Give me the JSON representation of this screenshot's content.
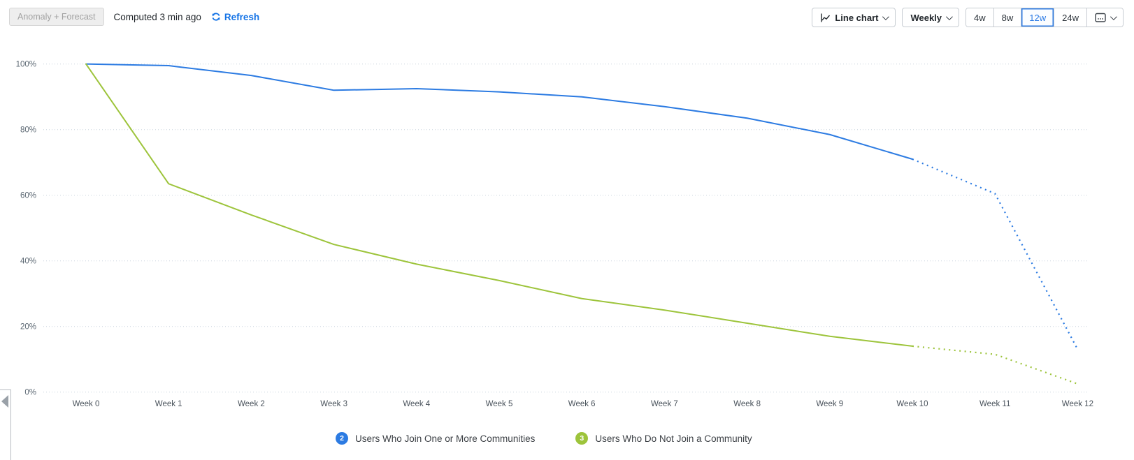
{
  "header": {
    "anomaly_button": "Anomaly + Forecast",
    "computed_text": "Computed 3 min ago",
    "refresh_label": "Refresh",
    "chart_type_label": "Line chart",
    "interval_label": "Weekly",
    "range_options": [
      "4w",
      "8w",
      "12w",
      "24w"
    ],
    "selected_range": "12w"
  },
  "colors": {
    "accent_blue": "#2c7be2",
    "series_green": "#9dc43b",
    "refresh_link": "#1473e6",
    "gridline": "#c9d4de",
    "axis_label": "#5c6873"
  },
  "chart_data": {
    "type": "line",
    "title": "",
    "xlabel": "",
    "ylabel": "",
    "x_labels": [
      "Week 0",
      "Week 1",
      "Week 2",
      "Week 3",
      "Week 4",
      "Week 5",
      "Week 6",
      "Week 7",
      "Week 8",
      "Week 9",
      "Week 10",
      "Week 11",
      "Week 12"
    ],
    "y_ticks": [
      "100%",
      "80%",
      "60%",
      "40%",
      "20%",
      "0%"
    ],
    "y_tick_values": [
      100,
      80,
      60,
      40,
      20,
      0
    ],
    "ylim": [
      0,
      100
    ],
    "grid": "dotted-horizontal",
    "legend_position": "bottom",
    "forecast_style": "dotted",
    "series": [
      {
        "name": "Users Who Join One or More Communities",
        "badge": "2",
        "color": "#2c7be2",
        "values": [
          100,
          99.5,
          96.5,
          92,
          92.5,
          91.5,
          90,
          87,
          83.5,
          78.5,
          71
        ],
        "forecast_start_week": 10,
        "forecast_values": [
          71,
          60.5,
          13
        ]
      },
      {
        "name": "Users Who Do Not Join a Community",
        "badge": "3",
        "color": "#9dc43b",
        "values": [
          100,
          63.5,
          54,
          45,
          39,
          34,
          28.5,
          25,
          21,
          17,
          14
        ],
        "forecast_start_week": 10,
        "forecast_values": [
          14,
          11.5,
          2.5
        ]
      }
    ]
  }
}
